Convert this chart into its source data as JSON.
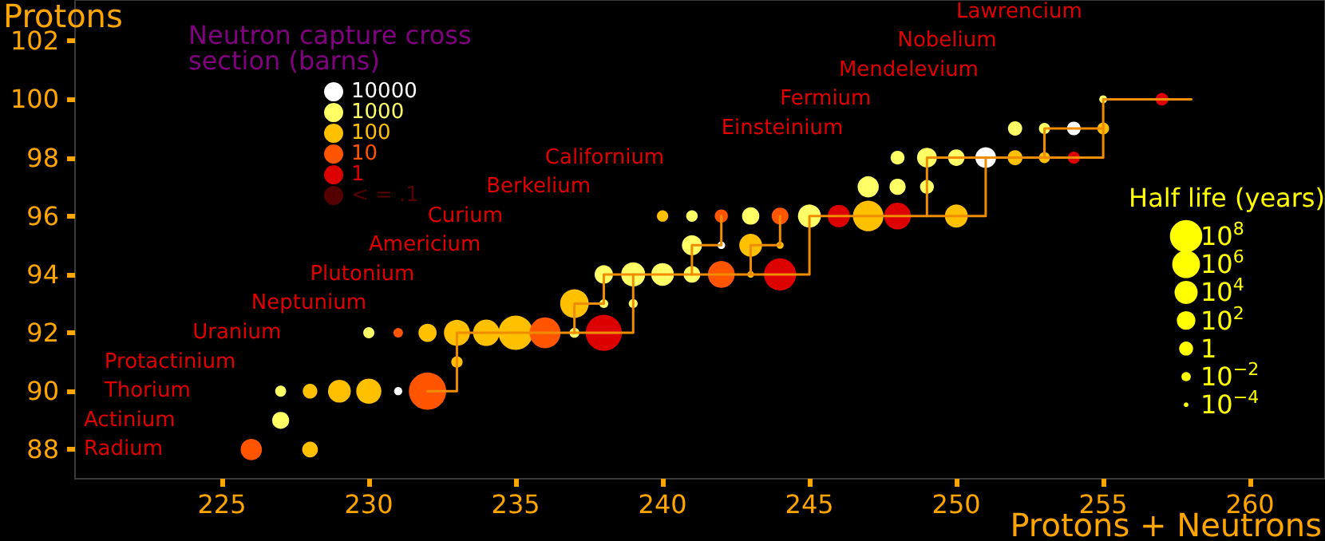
{
  "chart_data": {
    "type": "bubble",
    "xlabel": "Protons + Neutrons",
    "ylabel": "Protons",
    "legend_title": "Neutron capture cross section (barns)",
    "legend": "top left",
    "grid": false,
    "marker": "circle",
    "line_style": "solid",
    "xlim": [
      220,
      262.55
    ],
    "xticks": [
      225,
      230,
      235,
      240,
      245,
      250,
      255,
      260
    ],
    "ylim": [
      87,
      103.4
    ],
    "yticks": [
      88,
      90,
      92,
      94,
      96,
      98,
      100,
      102
    ],
    "size_legend": [
      {
        "value": 0.753,
        "label": "10$^{8}$"
      },
      {
        "value": 0.554,
        "label": "10$^{6}$"
      },
      {
        "value": 0.386,
        "label": "10$^{4}$"
      },
      {
        "value": 0.248,
        "label": "10$^{2}$"
      },
      {
        "value": 0.141,
        "label": "1"
      },
      {
        "value": 0.063,
        "label": "10$^{−2}$"
      },
      {
        "value": 0.016,
        "label": "10$^{−4}$"
      }
    ],
    "series": [
      {
        "type": "line",
        "color": "#f08c00",
        "marker": "none",
        "x": [
          232,
          233,
          233,
          239,
          239,
          245,
          245,
          249,
          249,
          255,
          255,
          258
        ],
        "values": [
          90,
          90,
          92,
          92,
          94,
          94,
          96,
          96,
          98,
          98,
          100,
          100
        ]
      },
      {
        "type": "line",
        "color": "#f08c00",
        "marker": "none",
        "x": [
          249,
          251,
          251
        ],
        "values": [
          96,
          96,
          98
        ]
      },
      {
        "type": "line",
        "color": "#f08c00",
        "marker": "none",
        "x": [
          237,
          237,
          238,
          238,
          239
        ],
        "values": [
          92,
          93,
          93,
          94,
          94
        ]
      },
      {
        "type": "line",
        "color": "#f08c00",
        "marker": "none",
        "x": [
          241,
          241,
          242,
          242
        ],
        "values": [
          94,
          95,
          95,
          96
        ]
      },
      {
        "type": "line",
        "color": "#f08c00",
        "marker": "none",
        "x": [
          243,
          243,
          244,
          244
        ],
        "values": [
          94,
          95,
          95,
          96
        ]
      },
      {
        "type": "line",
        "color": "#f08c00",
        "marker": "none",
        "x": [
          253,
          253,
          255
        ],
        "values": [
          98,
          99,
          99
        ]
      },
      {
        "name": "10000",
        "color": "#ffffff",
        "x": [
          231,
          242,
          251,
          254
        ],
        "values": [
          90,
          95,
          98,
          99
        ],
        "sizes": [
          0.048,
          0.042,
          0.31,
          0.135
        ]
      },
      {
        "name": "1000",
        "color": "#ffff66",
        "x": [
          227,
          227,
          230,
          237,
          238,
          239,
          238,
          239,
          240,
          241,
          241,
          241,
          243,
          245,
          247,
          248,
          249,
          248,
          249,
          250,
          252,
          253,
          255
        ],
        "values": [
          89,
          90,
          92,
          92,
          93,
          93,
          94,
          94,
          94,
          94,
          95,
          96,
          96,
          96,
          97,
          97,
          97,
          98,
          98,
          98,
          99,
          99,
          100
        ],
        "sizes": [
          0.209,
          0.087,
          0.089,
          0.072,
          0.056,
          0.058,
          0.244,
          0.416,
          0.372,
          0.199,
          0.289,
          0.096,
          0.216,
          0.381,
          0.323,
          0.188,
          0.138,
          0.138,
          0.283,
          0.197,
          0.146,
          0.089,
          0.045
        ]
      },
      {
        "name": "100",
        "color": "#ffc000",
        "x": [
          228,
          228,
          229,
          230,
          233,
          232,
          233,
          234,
          235,
          237,
          243,
          244,
          243,
          240,
          247,
          250,
          252,
          253,
          255
        ],
        "values": [
          88,
          90,
          90,
          90,
          91,
          92,
          92,
          92,
          92,
          93,
          95,
          95,
          94,
          96,
          96,
          96,
          98,
          98,
          99
        ],
        "sizes": [
          0.178,
          0.154,
          0.376,
          0.456,
          0.093,
          0.238,
          0.483,
          0.5,
          0.847,
          0.585,
          0.376,
          0.037,
          0.031,
          0.093,
          0.669,
          0.38,
          0.16,
          0.087,
          0.1
        ]
      },
      {
        "name": "10",
        "color": "#ff5500",
        "x": [
          226,
          232,
          231,
          236,
          242,
          242,
          244
        ],
        "values": [
          88,
          90,
          92,
          92,
          94,
          96,
          96
        ],
        "sizes": [
          0.327,
          1,
          0.065,
          0.686,
          0.516,
          0.125,
          0.205
        ]
      },
      {
        "name": "1",
        "color": "#dd0000",
        "x": [
          238,
          244,
          246,
          248,
          254,
          257
        ],
        "values": [
          92,
          94,
          96,
          96,
          98,
          100
        ],
        "sizes": [
          0.94,
          0.743,
          0.361,
          0.512,
          0.107,
          0.116
        ]
      },
      {
        "name": "< = .1",
        "color": "#550000"
      }
    ],
    "annotations": [
      "Half life (years)",
      "Radium",
      "Actinium",
      "Thorium",
      "Protactinium",
      "Uranium",
      "Neptunium",
      "Plutonium",
      "Americium",
      "Curium",
      "Berkelium",
      "Californium",
      "Einsteinium",
      "Fermium",
      "Mendelevium",
      "Nobelium",
      "Lawrencium"
    ]
  }
}
